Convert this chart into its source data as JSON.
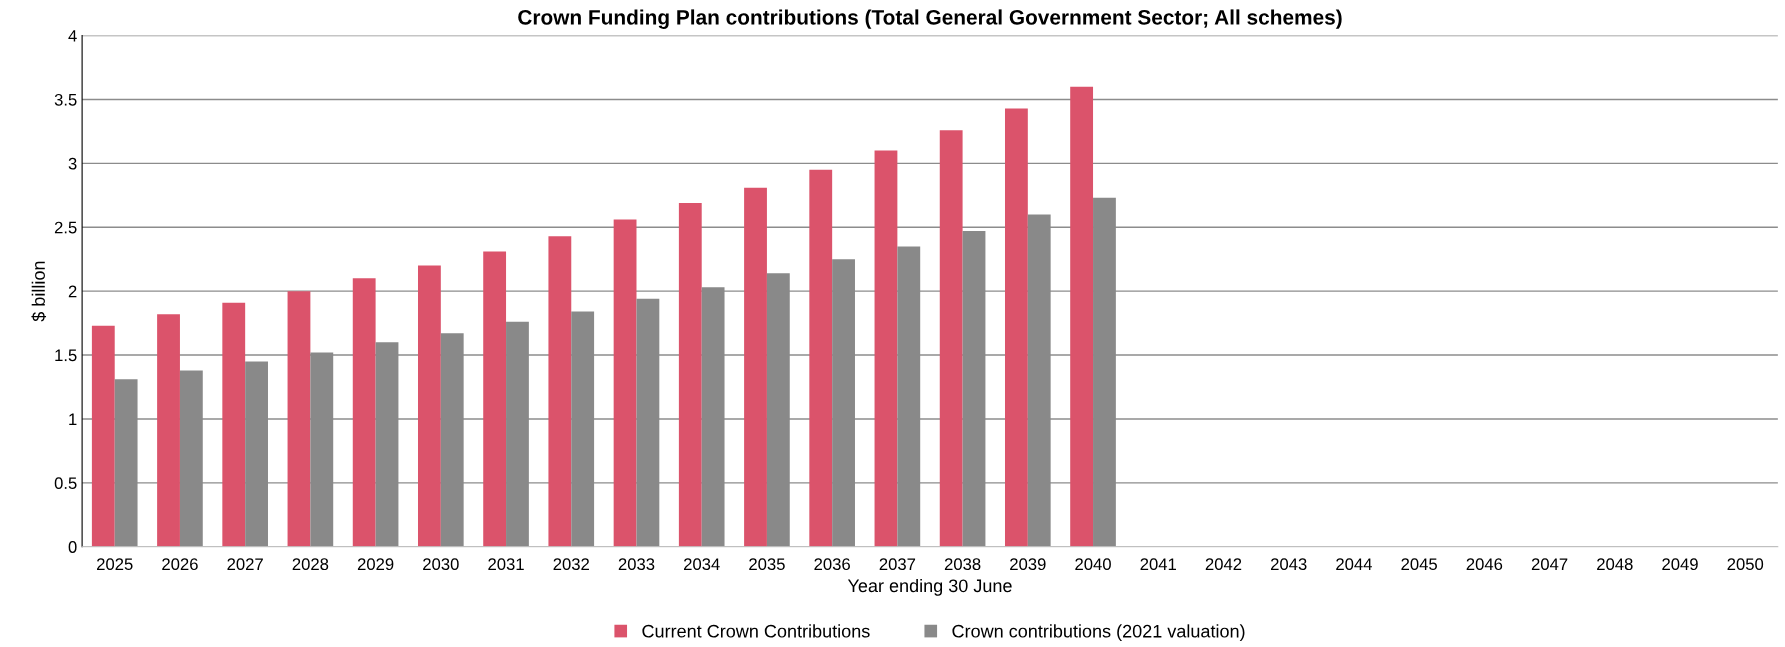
{
  "chart_data": {
    "type": "bar",
    "title": "Crown Funding Plan contributions (Total General Government Sector; All schemes)",
    "xlabel": "Year ending 30 June",
    "ylabel": "$ billion",
    "categories": [
      "2025",
      "2026",
      "2027",
      "2028",
      "2029",
      "2030",
      "2031",
      "2032",
      "2033",
      "2034",
      "2035",
      "2036",
      "2037",
      "2038",
      "2039",
      "2040",
      "2041",
      "2042",
      "2043",
      "2044",
      "2045",
      "2046",
      "2047",
      "2048",
      "2049",
      "2050"
    ],
    "series": [
      {
        "name": "Current Crown Contributions",
        "color": "#db536b",
        "values": [
          1.73,
          1.82,
          1.91,
          2.0,
          2.1,
          2.2,
          2.31,
          2.43,
          2.56,
          2.69,
          2.81,
          2.95,
          3.1,
          3.26,
          3.43,
          3.6,
          null,
          null,
          null,
          null,
          null,
          null,
          null,
          null,
          null,
          null
        ]
      },
      {
        "name": "Crown contributions (2021 valuation)",
        "color": "#898989",
        "values": [
          1.31,
          1.38,
          1.45,
          1.52,
          1.6,
          1.67,
          1.76,
          1.84,
          1.94,
          2.03,
          2.14,
          2.25,
          2.35,
          2.47,
          2.6,
          2.73,
          null,
          null,
          null,
          null,
          null,
          null,
          null,
          null,
          null,
          null
        ]
      }
    ],
    "ylim": [
      0,
      4
    ],
    "yticks": [
      0,
      0.5,
      1,
      1.5,
      2,
      2.5,
      3,
      3.5,
      4
    ],
    "grid": "y",
    "legend": "bottom"
  }
}
